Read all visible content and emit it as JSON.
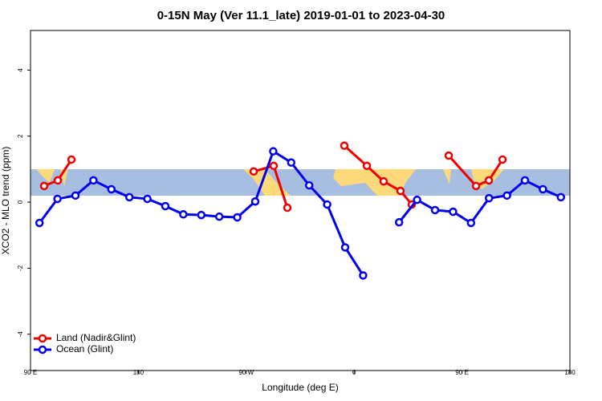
{
  "chart_data": {
    "type": "line",
    "title": "0-15N May (Ver 11.1_late)   2019-01-01 to 2023-04-30",
    "x_label": "Longitude (deg E)",
    "y_label": "XCO2 - MLO trend (ppm)",
    "xlim": [
      90,
      540
    ],
    "ylim": [
      -5.1,
      5.2
    ],
    "xticks": [
      {
        "value": 90,
        "label": "90 E"
      },
      180,
      {
        "value": 270,
        "label": "90 W"
      },
      {
        "value": 360,
        "label": "0"
      },
      {
        "value": 450,
        "label": "90 E"
      },
      {
        "value": 540,
        "label": "180"
      }
    ],
    "yticks": [
      -4,
      -2,
      0,
      2,
      4
    ],
    "legend": "bottom-left",
    "series": [
      {
        "name": "Land (Nadir&Glint)",
        "color": "#ee0000",
        "x": [
          101.4,
          112.8,
          124.2,
          null,
          276.2,
          292.9,
          304.3,
          null,
          351.8,
          370.6,
          384.6,
          398.7,
          408.1,
          null,
          438.9,
          461.7,
          472.4,
          483.8
        ],
        "values": [
          0.49,
          0.66,
          1.29,
          null,
          0.93,
          1.1,
          -0.17,
          null,
          1.71,
          1.1,
          0.63,
          0.34,
          -0.07,
          null,
          1.41,
          0.49,
          0.66,
          1.29
        ]
      },
      {
        "name": "Ocean (Glint)",
        "color": "#0000ee",
        "x": [
          97.5,
          112.5,
          127.5,
          142.5,
          157.5,
          172.5,
          187.5,
          202.5,
          217.5,
          232.5,
          247.5,
          262.5,
          277.5,
          292.5,
          307.5,
          322.5,
          337.5,
          352.5,
          367.5,
          null,
          397.5,
          412.5,
          427.5,
          442.5,
          457.5,
          472.5,
          487.5,
          502.5,
          517.5,
          532.5
        ],
        "values": [
          -0.63,
          0.1,
          0.2,
          0.66,
          0.39,
          0.15,
          0.1,
          -0.12,
          -0.37,
          -0.39,
          -0.44,
          -0.46,
          0.02,
          1.54,
          1.2,
          0.51,
          -0.07,
          -1.37,
          -2.22,
          null,
          -0.61,
          0.07,
          -0.24,
          -0.29,
          -0.63,
          0.12,
          0.2,
          0.66,
          0.39,
          0.15
        ]
      }
    ]
  }
}
